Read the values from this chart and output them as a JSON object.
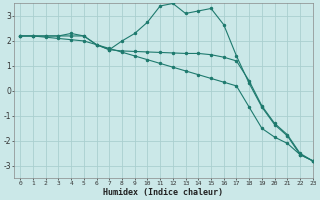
{
  "xlabel": "Humidex (Indice chaleur)",
  "bg_color": "#cbe8e8",
  "grid_color": "#aacfcf",
  "line_color": "#1e7a6e",
  "xlim": [
    -0.5,
    23
  ],
  "ylim": [
    -3.5,
    3.5
  ],
  "xticks": [
    0,
    1,
    2,
    3,
    4,
    5,
    6,
    7,
    8,
    9,
    10,
    11,
    12,
    13,
    14,
    15,
    16,
    17,
    18,
    19,
    20,
    21,
    22,
    23
  ],
  "yticks": [
    -3,
    -2,
    -1,
    0,
    1,
    2,
    3
  ],
  "lines": [
    {
      "x": [
        0,
        1,
        2,
        3,
        4,
        5,
        6,
        7,
        8,
        9,
        10,
        11,
        12,
        13,
        14,
        15,
        16,
        17,
        18,
        19,
        20,
        21,
        22,
        23
      ],
      "y": [
        2.2,
        2.2,
        2.15,
        2.1,
        2.05,
        2.0,
        1.85,
        1.7,
        1.55,
        1.4,
        1.25,
        1.1,
        0.95,
        0.8,
        0.65,
        0.5,
        0.35,
        0.2,
        -0.65,
        -1.5,
        -1.85,
        -2.1,
        -2.55,
        -2.8
      ]
    },
    {
      "x": [
        0,
        1,
        2,
        3,
        4,
        5,
        6,
        7,
        8,
        9,
        10,
        11,
        12,
        13,
        14,
        15,
        16,
        17,
        18,
        19,
        20,
        21,
        22,
        23
      ],
      "y": [
        2.2,
        2.2,
        2.2,
        2.2,
        2.2,
        2.2,
        1.85,
        1.65,
        1.6,
        1.58,
        1.56,
        1.54,
        1.52,
        1.5,
        1.5,
        1.45,
        1.35,
        1.2,
        0.4,
        -0.6,
        -1.3,
        -1.75,
        -2.5,
        -2.8
      ]
    },
    {
      "x": [
        0,
        1,
        2,
        3,
        4,
        5,
        6,
        7,
        8,
        9,
        10,
        11,
        12,
        13,
        14,
        15,
        16,
        17,
        18,
        19,
        20,
        21,
        22,
        23
      ],
      "y": [
        2.2,
        2.2,
        2.2,
        2.2,
        2.3,
        2.2,
        1.85,
        1.65,
        2.0,
        2.3,
        2.75,
        3.4,
        3.5,
        3.1,
        3.2,
        3.3,
        2.65,
        1.4,
        0.3,
        -0.65,
        -1.35,
        -1.8,
        -2.55,
        -2.8
      ]
    }
  ]
}
